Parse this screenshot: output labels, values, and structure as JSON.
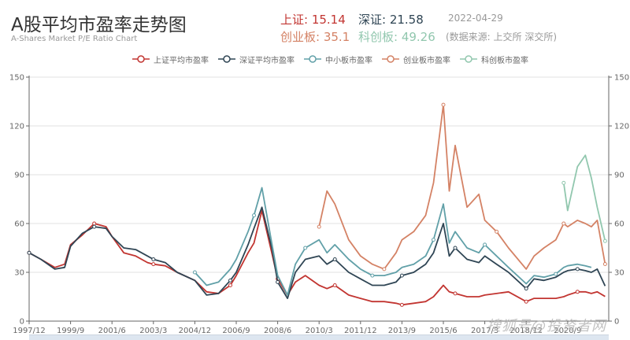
{
  "header": {
    "title": "A股平均市盈率走势图",
    "subtitle": "A-Shares Market P/E Ratio Chart",
    "stats": {
      "sh": "上证: 15.14",
      "sz": "深证: 21.58",
      "cy": "创业板: 35.1",
      "kc": "科创板: 49.26"
    },
    "date": "2022-04-29",
    "source": "(数据来源: 上交所 深交所)"
  },
  "legend": [
    {
      "label": "上证平均市盈率",
      "color": "#c23531"
    },
    {
      "label": "深证平均市盈率",
      "color": "#2f4554"
    },
    {
      "label": "中小板市盈率",
      "color": "#61a0a8"
    },
    {
      "label": "创业板市盈率",
      "color": "#d48265"
    },
    {
      "label": "科创板市盈率",
      "color": "#91c7ae"
    }
  ],
  "watermark": "搜狐号@投资者网",
  "chart_data": {
    "type": "line",
    "title": "A股平均市盈率走势图",
    "subtitle": "A-Shares Market P/E Ratio Chart",
    "xlabel": "",
    "ylabel": "",
    "ylim": [
      0,
      150
    ],
    "yticks": [
      0,
      30,
      60,
      90,
      120,
      150
    ],
    "y_axis_right_ticks": [
      0,
      30,
      60,
      90,
      120,
      150
    ],
    "grid": true,
    "legend_position": "top",
    "x_tick_labels": [
      "1997/12",
      "1999/9",
      "2001/6",
      "2003/3",
      "2004/12",
      "2006/9",
      "2008/6",
      "2010/3",
      "2011/12",
      "2013/9",
      "2015/6",
      "2017/3",
      "2018/12",
      "2020/9"
    ],
    "x": [
      "1997/12",
      "1998/6",
      "1999/1",
      "1999/6",
      "1999/9",
      "2000/3",
      "2000/9",
      "2001/3",
      "2001/6",
      "2001/12",
      "2002/6",
      "2002/12",
      "2003/3",
      "2003/9",
      "2004/3",
      "2004/12",
      "2005/6",
      "2005/12",
      "2006/6",
      "2006/9",
      "2007/3",
      "2007/6",
      "2007/10",
      "2008/3",
      "2008/6",
      "2008/11",
      "2009/3",
      "2009/8",
      "2010/3",
      "2010/7",
      "2010/11",
      "2011/6",
      "2011/12",
      "2012/6",
      "2012/12",
      "2013/6",
      "2013/9",
      "2014/3",
      "2014/9",
      "2015/1",
      "2015/6",
      "2015/9",
      "2015/12",
      "2016/6",
      "2016/12",
      "2017/3",
      "2017/9",
      "2018/3",
      "2018/12",
      "2019/4",
      "2019/9",
      "2020/3",
      "2020/7",
      "2020/9",
      "2021/2",
      "2021/6",
      "2021/9",
      "2021/12",
      "2022/4"
    ],
    "series": [
      {
        "name": "上证平均市盈率",
        "color": "#c23531",
        "values": [
          42,
          38,
          33,
          35,
          47,
          53,
          60,
          58,
          52,
          42,
          40,
          36,
          35,
          34,
          30,
          25,
          18,
          17,
          22,
          28,
          42,
          48,
          68,
          42,
          26,
          16,
          24,
          28,
          22,
          20,
          22,
          16,
          14,
          12,
          12,
          11,
          10,
          11,
          12,
          15,
          22,
          18,
          17,
          15,
          15,
          16,
          17,
          18,
          12,
          14,
          14,
          14,
          15,
          16,
          18,
          18,
          17,
          18,
          15.14
        ]
      },
      {
        "name": "深证平均市盈率",
        "color": "#2f4554",
        "values": [
          42,
          38,
          32,
          33,
          46,
          54,
          58,
          57,
          52,
          45,
          44,
          40,
          38,
          36,
          30,
          25,
          16,
          17,
          25,
          30,
          47,
          57,
          70,
          45,
          24,
          14,
          30,
          38,
          40,
          35,
          38,
          30,
          26,
          22,
          22,
          24,
          28,
          30,
          35,
          42,
          60,
          40,
          45,
          38,
          36,
          40,
          35,
          30,
          20,
          26,
          25,
          27,
          30,
          31,
          32,
          31,
          30,
          32,
          21.58
        ]
      },
      {
        "name": "中小板市盈率",
        "color": "#61a0a8",
        "values": [
          null,
          null,
          null,
          null,
          null,
          null,
          null,
          null,
          null,
          null,
          null,
          null,
          null,
          null,
          null,
          30,
          22,
          24,
          32,
          38,
          55,
          65,
          82,
          48,
          28,
          16,
          35,
          45,
          50,
          42,
          47,
          38,
          32,
          28,
          28,
          30,
          33,
          35,
          40,
          50,
          72,
          48,
          55,
          45,
          42,
          47,
          40,
          33,
          23,
          28,
          27,
          29,
          33,
          34,
          35,
          34,
          33,
          null,
          null
        ]
      },
      {
        "name": "创业板市盈率",
        "color": "#d48265",
        "values": [
          null,
          null,
          null,
          null,
          null,
          null,
          null,
          null,
          null,
          null,
          null,
          null,
          null,
          null,
          null,
          null,
          null,
          null,
          null,
          null,
          null,
          null,
          null,
          null,
          null,
          null,
          null,
          null,
          58,
          80,
          72,
          50,
          40,
          35,
          32,
          42,
          50,
          55,
          65,
          85,
          133,
          80,
          108,
          70,
          78,
          62,
          55,
          45,
          32,
          40,
          45,
          50,
          60,
          58,
          62,
          60,
          58,
          62,
          35.1
        ]
      },
      {
        "name": "科创板市盈率",
        "color": "#91c7ae",
        "values": [
          null,
          null,
          null,
          null,
          null,
          null,
          null,
          null,
          null,
          null,
          null,
          null,
          null,
          null,
          null,
          null,
          null,
          null,
          null,
          null,
          null,
          null,
          null,
          null,
          null,
          null,
          null,
          null,
          null,
          null,
          null,
          null,
          null,
          null,
          null,
          null,
          null,
          null,
          null,
          null,
          null,
          null,
          null,
          null,
          null,
          null,
          null,
          null,
          null,
          null,
          null,
          null,
          85,
          68,
          95,
          102,
          88,
          70,
          49.26
        ]
      }
    ]
  }
}
